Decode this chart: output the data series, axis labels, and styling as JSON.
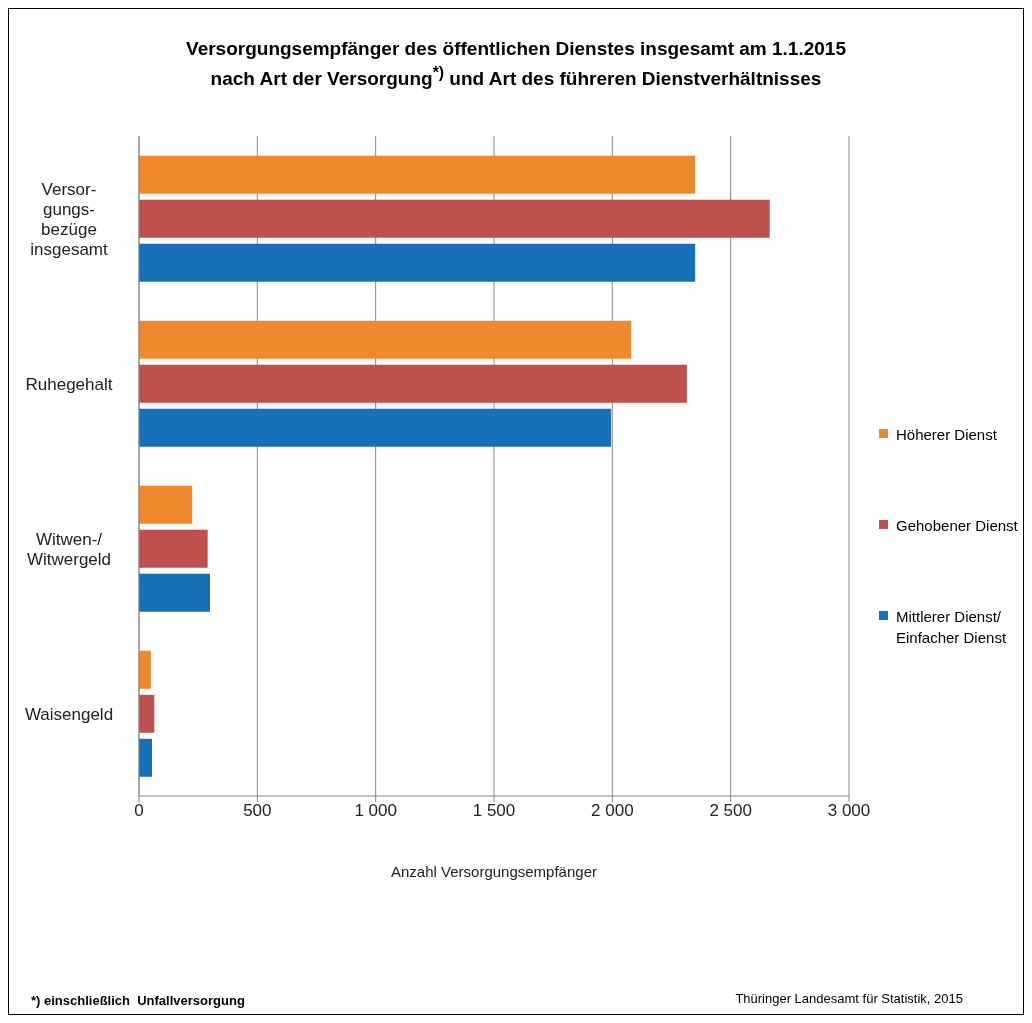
{
  "chart_data": {
    "type": "bar",
    "orientation": "horizontal",
    "title": "Versorgungsempfänger des öffentlichen Dienstes insgesamt am 1.1.2015\nnach Art der Versorgung$^{*)}$ und Art des führeren Dienstverhältnisses",
    "xlabel": "Anzahl Versorgungsempfänger",
    "categories": [
      "Versor-\ngungs-\nbezüge\ninsgesamt",
      "Ruhegehalt",
      "Witwen-/\nWitwergeld",
      "Waisengeld"
    ],
    "series": [
      {
        "name": "Höherer Dienst",
        "color": "#f0882f",
        "values": [
          2350,
          2080,
          225,
          50
        ]
      },
      {
        "name": "Gehobener Dienst",
        "color": "#c0504d",
        "values": [
          2665,
          2315,
          290,
          65
        ]
      },
      {
        "name": "Mittlerer Dienst/\nEinfacher Dienst",
        "color": "#1870b8",
        "values": [
          2350,
          1995,
          300,
          55
        ]
      }
    ],
    "xlim": [
      0,
      3000
    ],
    "xticks": [
      {
        "value": 0,
        "label": "0"
      },
      {
        "value": 500,
        "label": "500"
      },
      {
        "value": 1000,
        "label": "1 000"
      },
      {
        "value": 1500,
        "label": "1 500"
      },
      {
        "value": 2000,
        "label": "2 000"
      },
      {
        "value": 2500,
        "label": "2 500"
      },
      {
        "value": 3000,
        "label": "3 000"
      }
    ],
    "grid": "x",
    "legend": "right",
    "annotations": [
      "*) einschließlich  Unfallversorgung",
      "Thüringer Landesamt für Statistik, 2015"
    ]
  }
}
